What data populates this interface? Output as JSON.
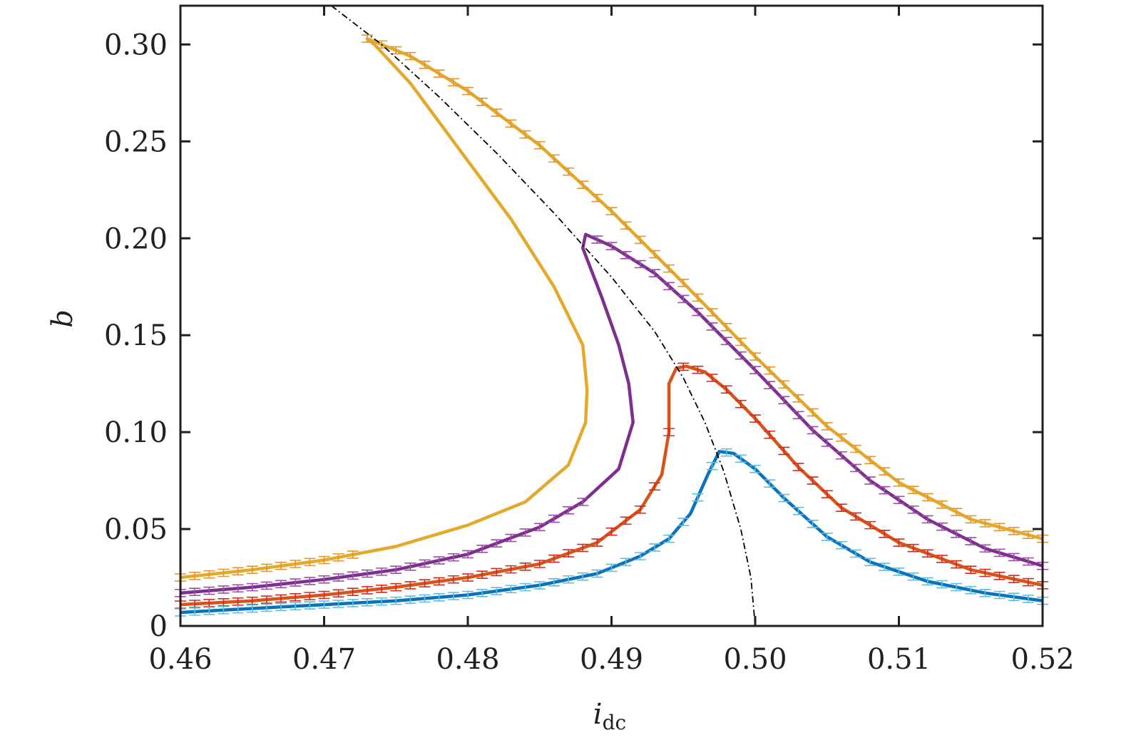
{
  "chart_data": {
    "type": "line",
    "xlabel": "i",
    "xlabel_sub": "dc",
    "ylabel": "b",
    "xlim": [
      0.46,
      0.52
    ],
    "ylim": [
      0,
      0.32
    ],
    "xticks": [
      0.46,
      0.47,
      0.48,
      0.49,
      0.5,
      0.51,
      0.52
    ],
    "xtick_labels": [
      "0.46",
      "0.47",
      "0.48",
      "0.49",
      "0.50",
      "0.51",
      "0.52"
    ],
    "yticks": [
      0,
      0.05,
      0.1,
      0.15,
      0.2,
      0.25,
      0.3
    ],
    "ytick_labels": [
      "0",
      "0.05",
      "0.10",
      "0.15",
      "0.20",
      "0.25",
      "0.30"
    ],
    "grid": false,
    "legend": "none",
    "series": [
      {
        "color": "#e3a92a",
        "errorbar_color": "#e8942c",
        "curve": [
          [
            0.46,
            0.025
          ],
          [
            0.465,
            0.029
          ],
          [
            0.47,
            0.034
          ],
          [
            0.475,
            0.041
          ],
          [
            0.48,
            0.052
          ],
          [
            0.484,
            0.064
          ],
          [
            0.487,
            0.083
          ],
          [
            0.4882,
            0.105
          ],
          [
            0.4883,
            0.122
          ],
          [
            0.488,
            0.145
          ],
          [
            0.486,
            0.175
          ],
          [
            0.483,
            0.21
          ],
          [
            0.479,
            0.25
          ],
          [
            0.476,
            0.28
          ],
          [
            0.4735,
            0.3
          ],
          [
            0.473,
            0.303
          ],
          [
            0.476,
            0.294
          ],
          [
            0.48,
            0.276
          ],
          [
            0.485,
            0.248
          ],
          [
            0.49,
            0.214
          ],
          [
            0.495,
            0.177
          ],
          [
            0.5,
            0.139
          ],
          [
            0.505,
            0.103
          ],
          [
            0.51,
            0.074
          ],
          [
            0.515,
            0.055
          ],
          [
            0.52,
            0.045
          ]
        ],
        "errorbars_x": [
          0.46,
          0.461,
          0.462,
          0.463,
          0.464,
          0.465,
          0.466,
          0.467,
          0.468,
          0.469,
          0.47,
          0.471,
          0.472,
          0.473,
          0.474,
          0.475,
          0.476,
          0.477,
          0.478,
          0.479,
          0.48,
          0.481,
          0.482,
          0.483,
          0.484,
          0.485,
          0.486,
          0.487,
          0.488,
          0.489,
          0.49,
          0.491,
          0.492,
          0.493,
          0.494,
          0.495,
          0.496,
          0.497,
          0.498,
          0.499,
          0.5,
          0.501,
          0.502,
          0.503,
          0.504,
          0.505,
          0.506,
          0.507,
          0.508,
          0.509,
          0.51,
          0.511,
          0.512,
          0.513,
          0.514,
          0.515,
          0.516,
          0.517,
          0.518,
          0.519,
          0.52
        ]
      },
      {
        "color": "#7e2f8e",
        "errorbar_color": "#9b4fa8",
        "curve": [
          [
            0.46,
            0.017
          ],
          [
            0.465,
            0.02
          ],
          [
            0.47,
            0.024
          ],
          [
            0.475,
            0.029
          ],
          [
            0.48,
            0.037
          ],
          [
            0.485,
            0.051
          ],
          [
            0.488,
            0.064
          ],
          [
            0.4905,
            0.081
          ],
          [
            0.4915,
            0.105
          ],
          [
            0.4912,
            0.125
          ],
          [
            0.4905,
            0.145
          ],
          [
            0.4893,
            0.17
          ],
          [
            0.488,
            0.195
          ],
          [
            0.4882,
            0.202
          ],
          [
            0.49,
            0.196
          ],
          [
            0.493,
            0.182
          ],
          [
            0.496,
            0.162
          ],
          [
            0.5,
            0.132
          ],
          [
            0.504,
            0.101
          ],
          [
            0.508,
            0.075
          ],
          [
            0.512,
            0.055
          ],
          [
            0.516,
            0.04
          ],
          [
            0.52,
            0.031
          ]
        ],
        "errorbars_x": [
          0.46,
          0.461,
          0.462,
          0.463,
          0.464,
          0.465,
          0.466,
          0.467,
          0.468,
          0.469,
          0.47,
          0.471,
          0.472,
          0.473,
          0.474,
          0.475,
          0.476,
          0.477,
          0.478,
          0.479,
          0.48,
          0.481,
          0.482,
          0.483,
          0.484,
          0.485,
          0.486,
          0.487,
          0.488,
          0.489,
          0.49,
          0.491,
          0.492,
          0.493,
          0.494,
          0.495,
          0.496,
          0.497,
          0.498,
          0.499,
          0.5,
          0.501,
          0.502,
          0.503,
          0.504,
          0.505,
          0.506,
          0.507,
          0.508,
          0.509,
          0.51,
          0.511,
          0.512,
          0.513,
          0.514,
          0.515,
          0.516,
          0.517,
          0.518,
          0.519,
          0.52
        ]
      },
      {
        "color": "#d95319",
        "errorbar_color": "#d7281e",
        "curve": [
          [
            0.46,
            0.011
          ],
          [
            0.465,
            0.013
          ],
          [
            0.47,
            0.016
          ],
          [
            0.475,
            0.02
          ],
          [
            0.48,
            0.025
          ],
          [
            0.485,
            0.032
          ],
          [
            0.489,
            0.043
          ],
          [
            0.492,
            0.06
          ],
          [
            0.4935,
            0.078
          ],
          [
            0.494,
            0.1
          ],
          [
            0.494,
            0.125
          ],
          [
            0.4945,
            0.133
          ],
          [
            0.4952,
            0.134
          ],
          [
            0.4965,
            0.131
          ],
          [
            0.498,
            0.122
          ],
          [
            0.5,
            0.107
          ],
          [
            0.503,
            0.082
          ],
          [
            0.506,
            0.061
          ],
          [
            0.51,
            0.043
          ],
          [
            0.515,
            0.029
          ],
          [
            0.52,
            0.021
          ]
        ],
        "errorbars_x": [
          0.46,
          0.461,
          0.462,
          0.463,
          0.464,
          0.465,
          0.466,
          0.467,
          0.468,
          0.469,
          0.47,
          0.471,
          0.472,
          0.473,
          0.474,
          0.475,
          0.476,
          0.477,
          0.478,
          0.479,
          0.48,
          0.481,
          0.482,
          0.483,
          0.484,
          0.485,
          0.486,
          0.487,
          0.488,
          0.489,
          0.49,
          0.491,
          0.492,
          0.493,
          0.494,
          0.495,
          0.496,
          0.497,
          0.498,
          0.499,
          0.5,
          0.501,
          0.502,
          0.503,
          0.504,
          0.505,
          0.506,
          0.507,
          0.508,
          0.509,
          0.51,
          0.511,
          0.512,
          0.513,
          0.514,
          0.515,
          0.516,
          0.517,
          0.518,
          0.519,
          0.52
        ]
      },
      {
        "color": "#0a72ba",
        "errorbar_color": "#5bbfde",
        "curve": [
          [
            0.46,
            0.007
          ],
          [
            0.465,
            0.009
          ],
          [
            0.47,
            0.011
          ],
          [
            0.475,
            0.013
          ],
          [
            0.48,
            0.016
          ],
          [
            0.485,
            0.021
          ],
          [
            0.489,
            0.027
          ],
          [
            0.492,
            0.036
          ],
          [
            0.494,
            0.045
          ],
          [
            0.4955,
            0.058
          ],
          [
            0.4967,
            0.078
          ],
          [
            0.4975,
            0.09
          ],
          [
            0.4985,
            0.089
          ],
          [
            0.5,
            0.081
          ],
          [
            0.502,
            0.066
          ],
          [
            0.505,
            0.046
          ],
          [
            0.508,
            0.033
          ],
          [
            0.512,
            0.023
          ],
          [
            0.516,
            0.017
          ],
          [
            0.52,
            0.013
          ]
        ],
        "errorbars_x": [
          0.46,
          0.461,
          0.462,
          0.463,
          0.464,
          0.465,
          0.466,
          0.467,
          0.468,
          0.469,
          0.47,
          0.471,
          0.472,
          0.473,
          0.474,
          0.475,
          0.476,
          0.477,
          0.478,
          0.479,
          0.48,
          0.481,
          0.482,
          0.483,
          0.484,
          0.485,
          0.486,
          0.487,
          0.488,
          0.489,
          0.49,
          0.491,
          0.492,
          0.493,
          0.494,
          0.495,
          0.496,
          0.497,
          0.498,
          0.499,
          0.5,
          0.501,
          0.502,
          0.503,
          0.504,
          0.505,
          0.506,
          0.507,
          0.508,
          0.509,
          0.51,
          0.511,
          0.512,
          0.513,
          0.514,
          0.515,
          0.516,
          0.517,
          0.518,
          0.519,
          0.52
        ]
      }
    ],
    "backbone_curve": {
      "style": "dash-dot",
      "color": "#000000",
      "points": [
        [
          0.4705,
          0.32
        ],
        [
          0.474,
          0.3
        ],
        [
          0.478,
          0.273
        ],
        [
          0.482,
          0.244
        ],
        [
          0.486,
          0.213
        ],
        [
          0.49,
          0.18
        ],
        [
          0.493,
          0.152
        ],
        [
          0.495,
          0.128
        ],
        [
          0.4965,
          0.105
        ],
        [
          0.4978,
          0.08
        ],
        [
          0.499,
          0.05
        ],
        [
          0.4997,
          0.025
        ],
        [
          0.5,
          0.0
        ]
      ]
    }
  }
}
